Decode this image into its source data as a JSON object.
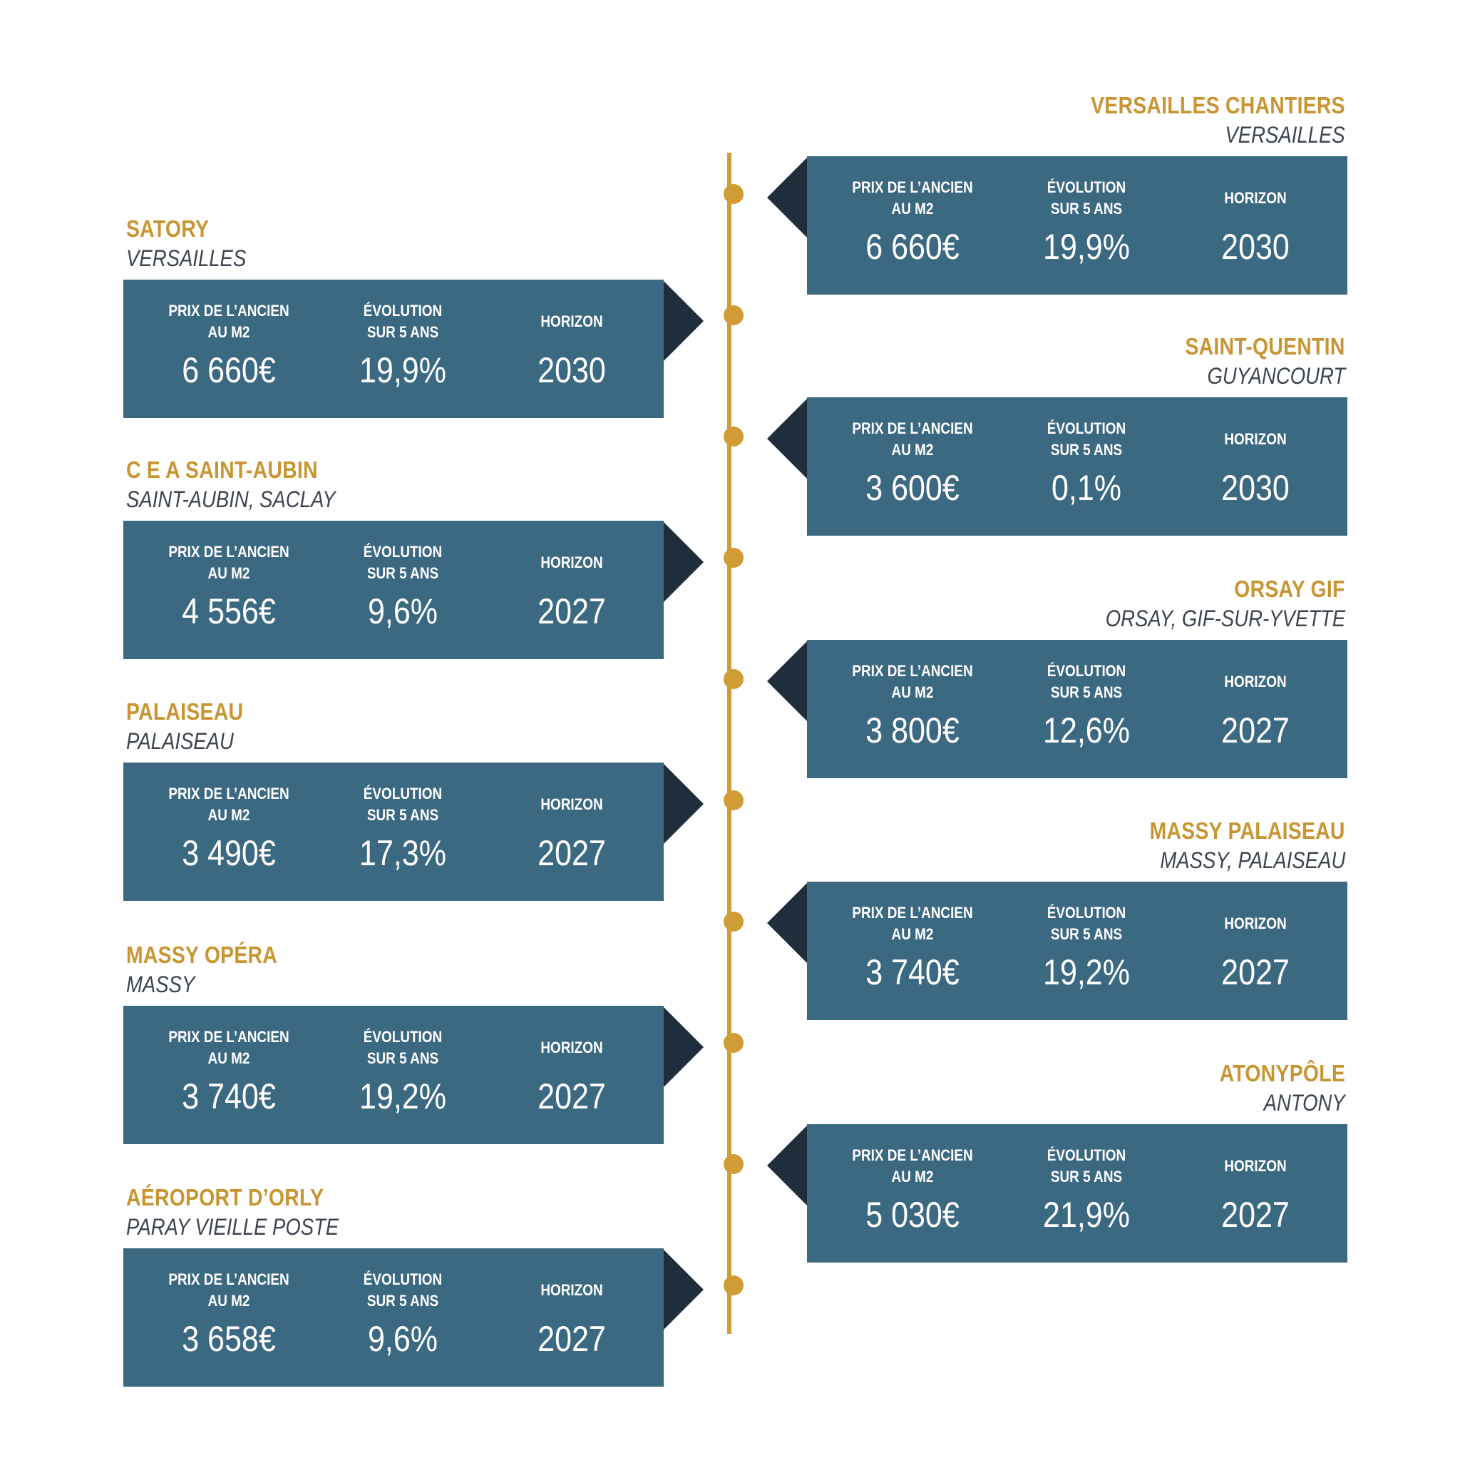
{
  "labels": {
    "price": "PRIX DE L’ANCIEN\nAU M2",
    "evolution": "ÉVOLUTION\nSUR 5 ANS",
    "horizon": "HORIZON"
  },
  "colors": {
    "gold": "#d09c36",
    "title_gold": "#c89532",
    "card_blue": "#3c6982",
    "arrow_navy": "#1e2e3c",
    "subtitle_gray": "#3c4450"
  },
  "left_stations": [
    {
      "name": "SATORY",
      "city": "VERSAILLES",
      "price": "6 660€",
      "evolution": "19,9%",
      "horizon": "2030"
    },
    {
      "name": "C E A SAINT-AUBIN",
      "city": "SAINT-AUBIN, SACLAY",
      "price": "4 556€",
      "evolution": "9,6%",
      "horizon": "2027"
    },
    {
      "name": "PALAISEAU",
      "city": "PALAISEAU",
      "price": "3 490€",
      "evolution": "17,3%",
      "horizon": "2027"
    },
    {
      "name": "MASSY OPÉRA",
      "city": "MASSY",
      "price": "3 740€",
      "evolution": "19,2%",
      "horizon": "2027"
    },
    {
      "name": "AÉROPORT D’ORLY",
      "city": "PARAY VIEILLE POSTE",
      "price": "3 658€",
      "evolution": "9,6%",
      "horizon": "2027"
    }
  ],
  "right_stations": [
    {
      "name": "VERSAILLES CHANTIERS",
      "city": "VERSAILLES",
      "price": "6 660€",
      "evolution": "19,9%",
      "horizon": "2030"
    },
    {
      "name": "SAINT-QUENTIN",
      "city": "GUYANCOURT",
      "price": "3 600€",
      "evolution": "0,1%",
      "horizon": "2030"
    },
    {
      "name": "ORSAY GIF",
      "city": "ORSAY, GIF-SUR-YVETTE",
      "price": "3 800€",
      "evolution": "12,6%",
      "horizon": "2027"
    },
    {
      "name": "MASSY PALAISEAU",
      "city": "MASSY, PALAISEAU",
      "price": "3 740€",
      "evolution": "19,2%",
      "horizon": "2027"
    },
    {
      "name": "ATONYPÔLE",
      "city": "ANTONY",
      "price": "5 030€",
      "evolution": "21,9%",
      "horizon": "2027"
    }
  ]
}
